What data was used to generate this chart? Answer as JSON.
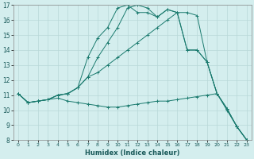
{
  "xlabel": "Humidex (Indice chaleur)",
  "background_color": "#d4eeee",
  "grid_color": "#b8d8d8",
  "line_color": "#1a7a6e",
  "xlim": [
    -0.5,
    23.5
  ],
  "ylim": [
    8,
    17
  ],
  "xticks": [
    0,
    1,
    2,
    3,
    4,
    5,
    6,
    7,
    8,
    9,
    10,
    11,
    12,
    13,
    14,
    15,
    16,
    17,
    18,
    19,
    20,
    21,
    22,
    23
  ],
  "yticks": [
    8,
    9,
    10,
    11,
    12,
    13,
    14,
    15,
    16,
    17
  ],
  "lines": [
    {
      "x": [
        0,
        1,
        2,
        3,
        4,
        5,
        6,
        7,
        8,
        9,
        10,
        11,
        12,
        13,
        14,
        15,
        16,
        17,
        18,
        19,
        20,
        21,
        22,
        23
      ],
      "y": [
        11.1,
        10.5,
        10.6,
        10.7,
        10.8,
        10.6,
        10.5,
        10.4,
        10.3,
        10.2,
        10.2,
        10.3,
        10.4,
        10.5,
        10.6,
        10.6,
        10.7,
        10.8,
        10.9,
        11.0,
        11.1,
        10.0,
        8.9,
        8.0
      ]
    },
    {
      "x": [
        0,
        1,
        2,
        3,
        4,
        5,
        6,
        7,
        8,
        9,
        10,
        11,
        12,
        13,
        14,
        15,
        16,
        17,
        18,
        19,
        20,
        21,
        22,
        23
      ],
      "y": [
        11.1,
        10.5,
        10.6,
        10.7,
        11.0,
        11.1,
        11.5,
        12.2,
        12.5,
        13.0,
        13.5,
        14.0,
        14.5,
        15.0,
        15.5,
        16.0,
        16.5,
        16.5,
        16.3,
        13.2,
        11.1,
        10.1,
        8.9,
        8.0
      ]
    },
    {
      "x": [
        0,
        1,
        2,
        3,
        4,
        5,
        6,
        7,
        8,
        9,
        10,
        11,
        12,
        13,
        14,
        15,
        16,
        17,
        18,
        19,
        20,
        21,
        22,
        23
      ],
      "y": [
        11.1,
        10.5,
        10.6,
        10.7,
        11.0,
        11.1,
        11.5,
        12.2,
        13.5,
        14.5,
        15.5,
        16.8,
        17.0,
        16.8,
        16.2,
        16.7,
        16.5,
        14.0,
        14.0,
        13.2,
        11.1,
        10.1,
        8.9,
        8.0
      ]
    },
    {
      "x": [
        0,
        1,
        2,
        3,
        4,
        5,
        6,
        7,
        8,
        9,
        10,
        11,
        12,
        13,
        14,
        15,
        16,
        17,
        18,
        19,
        20,
        21,
        22,
        23
      ],
      "y": [
        11.1,
        10.5,
        10.6,
        10.7,
        11.0,
        11.1,
        11.5,
        13.5,
        14.8,
        15.5,
        16.8,
        17.0,
        16.5,
        16.5,
        16.2,
        16.7,
        16.5,
        14.0,
        14.0,
        13.2,
        11.1,
        10.1,
        8.9,
        8.0
      ]
    }
  ]
}
